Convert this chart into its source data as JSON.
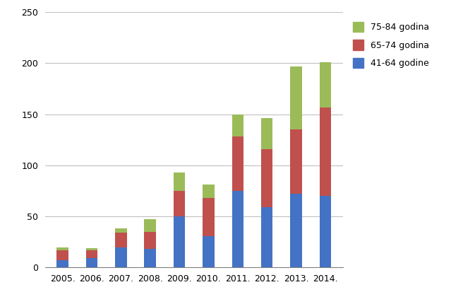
{
  "years": [
    "2005.",
    "2006.",
    "2007.",
    "2008.",
    "2009.",
    "2010.",
    "2011.",
    "2012.",
    "2013.",
    "2014."
  ],
  "series": {
    "41-64 godine": [
      7,
      9,
      20,
      18,
      50,
      31,
      75,
      59,
      72,
      70
    ],
    "65-74 godina": [
      10,
      8,
      14,
      17,
      25,
      37,
      53,
      57,
      63,
      87
    ],
    "75-84 godina": [
      3,
      2,
      4,
      12,
      18,
      13,
      22,
      30,
      62,
      44
    ]
  },
  "colors": {
    "41-64 godine": "#4472C4",
    "65-74 godina": "#C0504D",
    "75-84 godina": "#9BBB59"
  },
  "ylim": [
    0,
    250
  ],
  "yticks": [
    0,
    50,
    100,
    150,
    200,
    250
  ],
  "legend_order": [
    "75-84 godina",
    "65-74 godina",
    "41-64 godine"
  ],
  "background_color": "#FFFFFF",
  "grid_color": "#C0C0C0"
}
